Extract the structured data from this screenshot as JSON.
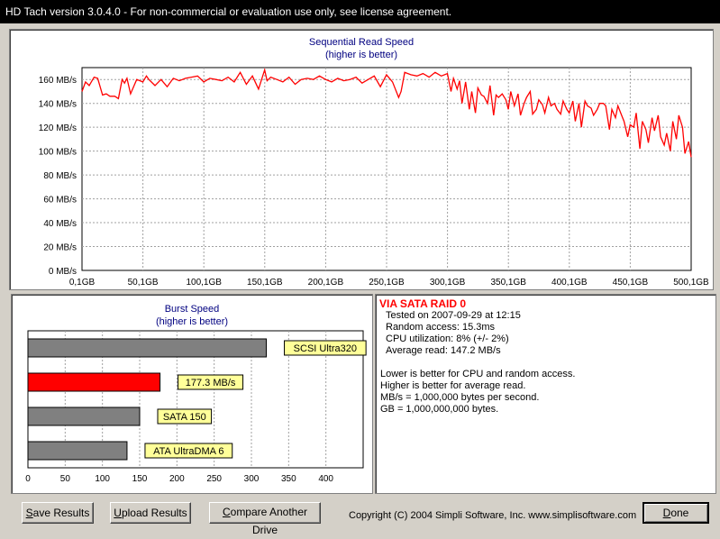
{
  "window": {
    "title": "HD Tach version 3.0.4.0  - For non-commercial or evaluation use only, see license agreement."
  },
  "seq_chart": {
    "chart_data": {
      "type": "line",
      "title": "Sequential Read Speed",
      "subtitle": "(higher is better)",
      "x_tick_labels": [
        "0,1GB",
        "50,1GB",
        "100,1GB",
        "150,1GB",
        "200,1GB",
        "250,1GB",
        "300,1GB",
        "350,1GB",
        "400,1GB",
        "450,1GB",
        "500,1GB"
      ],
      "y_tick_labels": [
        "0 MB/s",
        "20 MB/s",
        "40 MB/s",
        "60 MB/s",
        "80 MB/s",
        "100 MB/s",
        "120 MB/s",
        "140 MB/s",
        "160 MB/s"
      ],
      "xlim": [
        0.1,
        500.1
      ],
      "ylim": [
        0,
        170
      ],
      "grid": true,
      "line_color": "#ff0000",
      "series": [
        {
          "x": [
            0.1,
            3,
            6,
            10,
            13,
            17,
            20,
            23,
            27,
            30,
            33,
            35,
            37,
            40,
            45,
            50,
            53,
            55,
            60,
            65,
            70,
            75,
            80,
            85,
            90,
            95,
            100,
            105,
            110,
            115,
            120,
            125,
            130,
            135,
            140,
            145,
            150,
            152,
            155,
            160,
            165,
            170,
            175,
            180,
            185,
            190,
            195,
            200,
            205,
            210,
            215,
            220,
            225,
            230,
            235,
            240,
            245,
            250,
            255,
            260,
            262,
            265,
            270,
            275,
            280,
            285,
            290,
            295,
            300,
            303,
            305,
            308,
            310,
            312,
            315,
            318,
            320,
            323,
            325,
            328,
            330,
            333,
            335,
            338,
            340,
            342,
            345,
            348,
            350,
            352,
            355,
            358,
            360,
            363,
            365,
            368,
            370,
            373,
            375,
            378,
            380,
            383,
            385,
            388,
            390,
            393,
            395,
            398,
            400,
            403,
            405,
            408,
            410,
            413,
            415,
            418,
            420,
            423,
            425,
            428,
            430,
            433,
            435,
            438,
            440,
            443,
            445,
            448,
            450,
            453,
            455,
            458,
            460,
            463,
            465,
            468,
            470,
            473,
            475,
            478,
            480,
            483,
            485,
            488,
            490,
            493,
            495,
            498,
            500.1
          ],
          "y": [
            150,
            158,
            155,
            162,
            161,
            147,
            148,
            146,
            146,
            144,
            160,
            157,
            161,
            148,
            160,
            158,
            163,
            160,
            155,
            160,
            154,
            161,
            159,
            161,
            162,
            163,
            158,
            161,
            160,
            159,
            162,
            158,
            166,
            156,
            163,
            152,
            168,
            159,
            162,
            160,
            158,
            162,
            156,
            160,
            161,
            160,
            163,
            160,
            158,
            161,
            159,
            160,
            162,
            157,
            160,
            163,
            154,
            164,
            158,
            145,
            150,
            166,
            164,
            163,
            165,
            162,
            166,
            163,
            165,
            150,
            161,
            152,
            159,
            140,
            158,
            135,
            150,
            132,
            153,
            147,
            146,
            140,
            155,
            130,
            147,
            145,
            148,
            143,
            135,
            150,
            138,
            148,
            130,
            140,
            145,
            150,
            131,
            135,
            143,
            139,
            132,
            145,
            138,
            140,
            135,
            131,
            142,
            135,
            132,
            142,
            125,
            140,
            120,
            142,
            138,
            136,
            130,
            135,
            140,
            140,
            138,
            118,
            135,
            128,
            138,
            130,
            125,
            112,
            122,
            120,
            132,
            102,
            125,
            118,
            107,
            128,
            117,
            130,
            112,
            105,
            115,
            100,
            125,
            110,
            130,
            120,
            98,
            108,
            95
          ]
        }
      ]
    }
  },
  "burst_chart": {
    "chart_data": {
      "type": "bar",
      "title": "Burst Speed",
      "subtitle": "(higher is better)",
      "categories": [
        "SCSI Ultra320",
        "177.3 MB/s",
        "SATA 150",
        "ATA UltraDMA 6"
      ],
      "values": [
        320,
        177.3,
        150,
        133
      ],
      "bar_colors": [
        "#808080",
        "#ff0000",
        "#808080",
        "#808080"
      ],
      "x_tick_labels": [
        "0",
        "50",
        "100",
        "150",
        "200",
        "250",
        "300",
        "350",
        "400"
      ],
      "xlim": [
        0,
        450
      ],
      "grid": true
    }
  },
  "info": {
    "title": "VIA SATA RAID 0",
    "tested": "Tested on 2007-09-29 at 12:15",
    "random_access": "Random access: 15.3ms",
    "cpu": "CPU utilization: 8% (+/- 2%)",
    "average": "Average read: 147.2 MB/s",
    "note1": "Lower is better for CPU and random access.",
    "note2": "Higher is better for average read.",
    "note3": "MB/s = 1,000,000 bytes per second.",
    "note4": "GB = 1,000,000,000 bytes."
  },
  "buttons": {
    "save": {
      "u": "S",
      "rest": "ave Results"
    },
    "upload": {
      "u": "U",
      "rest": "pload Results"
    },
    "compare": {
      "u": "C",
      "rest": "ompare Another Drive"
    },
    "done": {
      "u": "D",
      "rest": "one"
    }
  },
  "footer": {
    "copyright": "Copyright (C) 2004 Simpli Software, Inc. www.simplisoftware.com"
  }
}
